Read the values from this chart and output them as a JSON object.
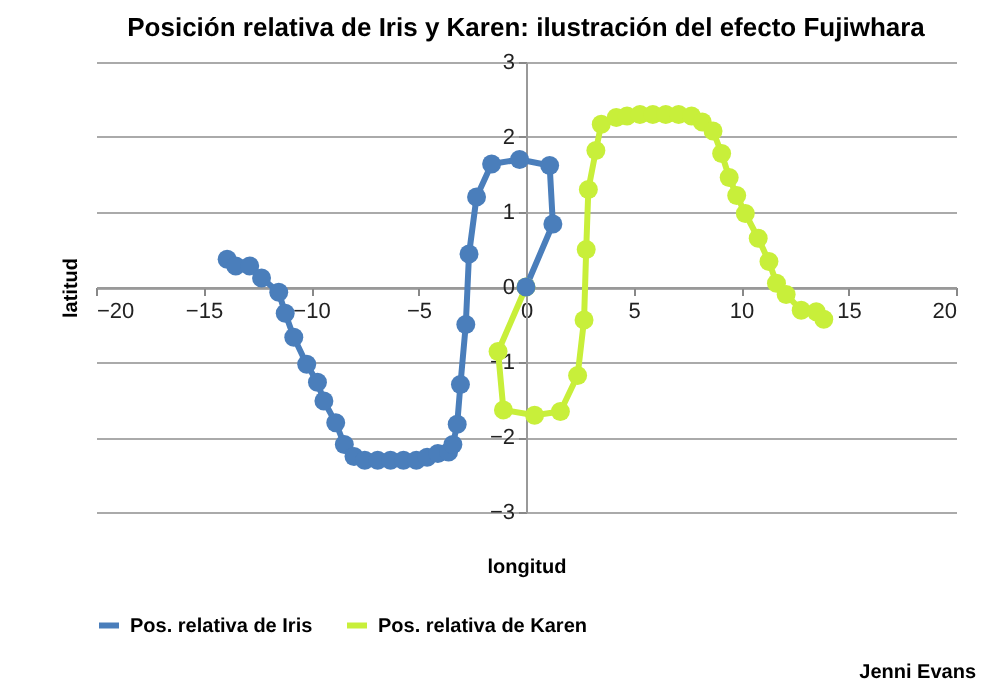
{
  "chart_data": {
    "type": "line",
    "title": "Posición relativa de Iris y Karen: ilustración del efecto Fujiwhara",
    "xlabel": "longitud",
    "ylabel": "latitud",
    "xlim": [
      -20,
      20
    ],
    "xticks": [
      -20,
      -15,
      -10,
      -5,
      0,
      5,
      10,
      15,
      20
    ],
    "ylim": [
      -3,
      3
    ],
    "yticks": [
      -3,
      -2,
      -1,
      0,
      1,
      2,
      3
    ],
    "grid": "y",
    "legend": "bottom",
    "marker": "circle",
    "line_style": "solid",
    "annotations": [
      "Jenni Evans"
    ],
    "series": [
      {
        "name": "Pos. relativa de Iris",
        "color": "#4a7ebb",
        "x": [
          -13.9,
          -13.5,
          -12.85,
          -12.3,
          -11.5,
          -11.2,
          -10.8,
          -10.2,
          -9.7,
          -9.4,
          -8.85,
          -8.45,
          -8.0,
          -7.5,
          -6.9,
          -6.3,
          -5.7,
          -5.1,
          -4.6,
          -4.1,
          -3.6,
          -3.4,
          -3.2,
          -3.05,
          -2.8,
          -2.65,
          -2.3,
          -1.6,
          -0.3,
          1.1,
          1.25,
          0
        ],
        "values": [
          0.37,
          0.28,
          0.28,
          0.12,
          -0.07,
          -0.35,
          -0.67,
          -1.03,
          -1.27,
          -1.52,
          -1.81,
          -2.1,
          -2.26,
          -2.31,
          -2.31,
          -2.31,
          -2.31,
          -2.31,
          -2.27,
          -2.22,
          -2.2,
          -2.1,
          -1.83,
          -1.3,
          -0.5,
          0.44,
          1.2,
          1.64,
          1.7,
          1.62,
          0.84,
          0
        ]
      },
      {
        "name": "Pos. relativa de Karen",
        "color": "#c8ef3a",
        "x": [
          0,
          -1.3,
          -1.05,
          0.4,
          1.6,
          2.4,
          2.7,
          2.8,
          2.9,
          3.25,
          3.5,
          4.2,
          4.7,
          5.3,
          5.9,
          6.5,
          7.1,
          7.7,
          8.2,
          8.7,
          9.1,
          9.45,
          9.8,
          10.2,
          10.8,
          11.3,
          11.65,
          12.1,
          12.8,
          13.5,
          13.85
        ],
        "values": [
          0,
          -0.86,
          -1.64,
          -1.71,
          -1.66,
          -1.18,
          -0.44,
          0.5,
          1.3,
          1.82,
          2.17,
          2.26,
          2.28,
          2.3,
          2.3,
          2.3,
          2.3,
          2.28,
          2.2,
          2.08,
          1.78,
          1.46,
          1.22,
          0.98,
          0.65,
          0.34,
          0.05,
          -0.1,
          -0.31,
          -0.33,
          -0.43
        ]
      }
    ]
  }
}
